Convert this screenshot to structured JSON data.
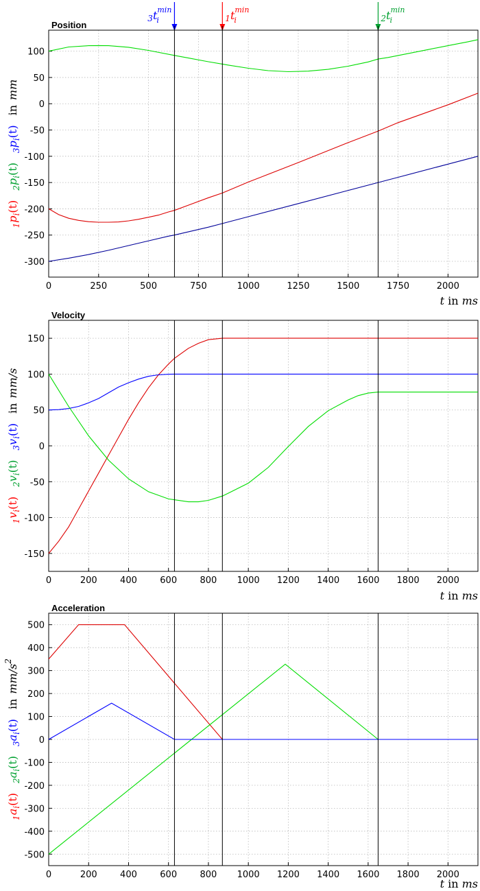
{
  "markers": [
    {
      "x": 630,
      "pre": "3",
      "label": "t",
      "sub": "i",
      "sup": "min",
      "color": "#0000ff"
    },
    {
      "x": 870,
      "pre": "1",
      "label": "t",
      "sub": "i",
      "sup": "min",
      "color": "#ff0000"
    },
    {
      "x": 1650,
      "pre": "2",
      "label": "t",
      "sub": "i",
      "sup": "min",
      "color": "#00a030"
    }
  ],
  "xlabel": {
    "var": "t",
    "in": "in",
    "unit": "ms"
  },
  "chart_data": [
    {
      "type": "line",
      "title": "Position",
      "ylabel": {
        "in": "in",
        "unit": "mm",
        "exp": "",
        "series_syms": [
          {
            "pre": "3",
            "sym": "p",
            "sub": "i",
            "arg": "(t)",
            "color": "#0000ff"
          },
          {
            "pre": "2",
            "sym": "p",
            "sub": "i",
            "arg": "(t)",
            "color": "#00a030"
          },
          {
            "pre": "1",
            "sym": "p",
            "sub": "i",
            "arg": "(t)",
            "color": "#ff0000"
          }
        ]
      },
      "xlim": [
        0,
        2150
      ],
      "ylim": [
        -330,
        140
      ],
      "xticks": [
        0,
        250,
        500,
        750,
        1000,
        1250,
        1500,
        1750,
        2000
      ],
      "yticks": [
        -300,
        -250,
        -200,
        -150,
        -100,
        -50,
        0,
        50,
        100
      ],
      "grid": true,
      "series": [
        {
          "color": "#00dd00",
          "x": [
            0,
            100,
            200,
            250,
            300,
            400,
            500,
            630,
            700,
            800,
            870,
            900,
            1000,
            1100,
            1200,
            1300,
            1400,
            1500,
            1600,
            1650,
            1700,
            1800,
            1900,
            2000,
            2100,
            2150
          ],
          "y": [
            100,
            108,
            110.5,
            110.8,
            110.5,
            107.5,
            101.5,
            92,
            87,
            80,
            75.5,
            73.5,
            67.5,
            63,
            61,
            62,
            65.5,
            71.5,
            79.5,
            85,
            88,
            95.5,
            103,
            110.5,
            118,
            122
          ]
        },
        {
          "color": "#dd0000",
          "x": [
            0,
            50,
            100,
            150,
            200,
            250,
            300,
            350,
            400,
            450,
            500,
            550,
            600,
            630,
            700,
            800,
            870,
            1000,
            1250,
            1500,
            1650,
            1750,
            2000,
            2150
          ],
          "y": [
            -200,
            -211,
            -218,
            -222,
            -224.5,
            -225.5,
            -225.5,
            -225,
            -223,
            -220,
            -216,
            -212,
            -206,
            -203,
            -193,
            -179,
            -170,
            -149,
            -112,
            -74,
            -52,
            -36,
            -2,
            20
          ]
        },
        {
          "color": "#000099",
          "x": [
            0,
            100,
            200,
            300,
            400,
            500,
            600,
            630,
            800,
            870,
            1000,
            1250,
            1500,
            1650,
            1750,
            2000,
            2150
          ],
          "y": [
            -300,
            -294,
            -287,
            -279,
            -270,
            -261,
            -252,
            -250,
            -235,
            -228,
            -215,
            -190,
            -165,
            -150,
            -140,
            -115,
            -100
          ]
        }
      ]
    },
    {
      "type": "line",
      "title": "Velocity",
      "ylabel": {
        "in": "in",
        "unit": "mm/s",
        "exp": "",
        "series_syms": [
          {
            "pre": "3",
            "sym": "v",
            "sub": "i",
            "arg": "(t)",
            "color": "#0000ff"
          },
          {
            "pre": "2",
            "sym": "v",
            "sub": "i",
            "arg": "(t)",
            "color": "#00a030"
          },
          {
            "pre": "1",
            "sym": "v",
            "sub": "i",
            "arg": "(t)",
            "color": "#ff0000"
          }
        ]
      },
      "xlim": [
        0,
        2150
      ],
      "ylim": [
        -175,
        175
      ],
      "xticks": [
        0,
        200,
        400,
        600,
        800,
        1000,
        1200,
        1400,
        1600,
        1800,
        2000
      ],
      "yticks": [
        -150,
        -100,
        -50,
        0,
        50,
        100,
        150
      ],
      "grid": true,
      "series": [
        {
          "color": "#dd0000",
          "x": [
            0,
            50,
            100,
            150,
            200,
            250,
            300,
            350,
            400,
            450,
            500,
            550,
            600,
            630,
            700,
            750,
            800,
            850,
            870,
            2150
          ],
          "y": [
            -150,
            -133,
            -113,
            -88,
            -63,
            -38,
            -13,
            12,
            37,
            60,
            81,
            99,
            114,
            122,
            136,
            143,
            148,
            149.5,
            150,
            150
          ]
        },
        {
          "color": "#0000ff",
          "x": [
            0,
            50,
            100,
            150,
            200,
            250,
            300,
            350,
            400,
            450,
            500,
            550,
            600,
            630,
            2150
          ],
          "y": [
            50,
            50.5,
            52,
            55,
            60,
            66,
            74,
            82,
            88,
            93,
            97,
            99,
            99.8,
            100,
            100
          ]
        },
        {
          "color": "#00dd00",
          "x": [
            0,
            100,
            200,
            300,
            400,
            500,
            600,
            700,
            750,
            800,
            870,
            900,
            1000,
            1100,
            1200,
            1300,
            1400,
            1500,
            1550,
            1600,
            1650,
            2150
          ],
          "y": [
            100,
            55,
            14,
            -20,
            -46,
            -64,
            -74,
            -78,
            -78,
            -76,
            -70,
            -66,
            -52,
            -30,
            -1,
            27,
            49,
            64,
            70,
            73.5,
            75,
            75
          ]
        }
      ]
    },
    {
      "type": "line",
      "title": "Acceleration",
      "ylabel": {
        "in": "in",
        "unit": "mm/s",
        "exp": "2",
        "series_syms": [
          {
            "pre": "3",
            "sym": "a",
            "sub": "i",
            "arg": "(t)",
            "color": "#0000ff"
          },
          {
            "pre": "2",
            "sym": "a",
            "sub": "i",
            "arg": "(t)",
            "color": "#00a030"
          },
          {
            "pre": "1",
            "sym": "a",
            "sub": "i",
            "arg": "(t)",
            "color": "#ff0000"
          }
        ]
      },
      "xlim": [
        0,
        2150
      ],
      "ylim": [
        -550,
        550
      ],
      "xticks": [
        0,
        200,
        400,
        600,
        800,
        1000,
        1200,
        1400,
        1600,
        1800,
        2000
      ],
      "yticks": [
        -500,
        -400,
        -300,
        -200,
        -100,
        0,
        100,
        200,
        300,
        400,
        500
      ],
      "grid": true,
      "series": [
        {
          "color": "#dd0000",
          "x": [
            0,
            150,
            380,
            870,
            2150
          ],
          "y": [
            350,
            500,
            500,
            0,
            0
          ]
        },
        {
          "color": "#00dd00",
          "x": [
            0,
            1185,
            1650,
            2150
          ],
          "y": [
            -500,
            328,
            0,
            0
          ]
        },
        {
          "color": "#0000ff",
          "x": [
            0,
            315,
            630,
            2150
          ],
          "y": [
            0,
            158,
            0,
            0
          ]
        }
      ]
    }
  ]
}
